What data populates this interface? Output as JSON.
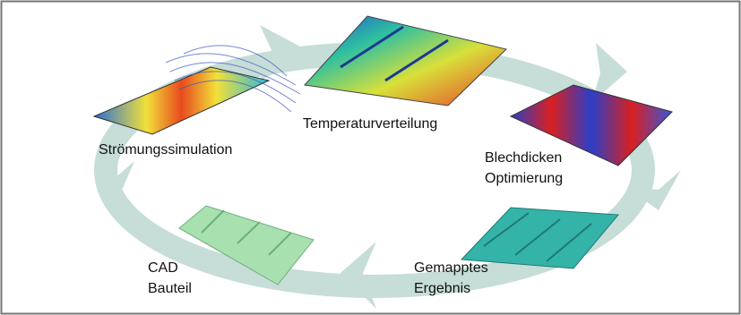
{
  "nodes": [
    {
      "lines": [
        "Strömungssimulation"
      ]
    },
    {
      "lines": [
        "Temperaturverteilung"
      ]
    },
    {
      "lines": [
        "Blechdicken",
        "Optimierung"
      ]
    },
    {
      "lines": [
        "Gemapptes",
        "Ergebnis"
      ]
    },
    {
      "lines": [
        "CAD",
        "Bauteil"
      ]
    }
  ]
}
